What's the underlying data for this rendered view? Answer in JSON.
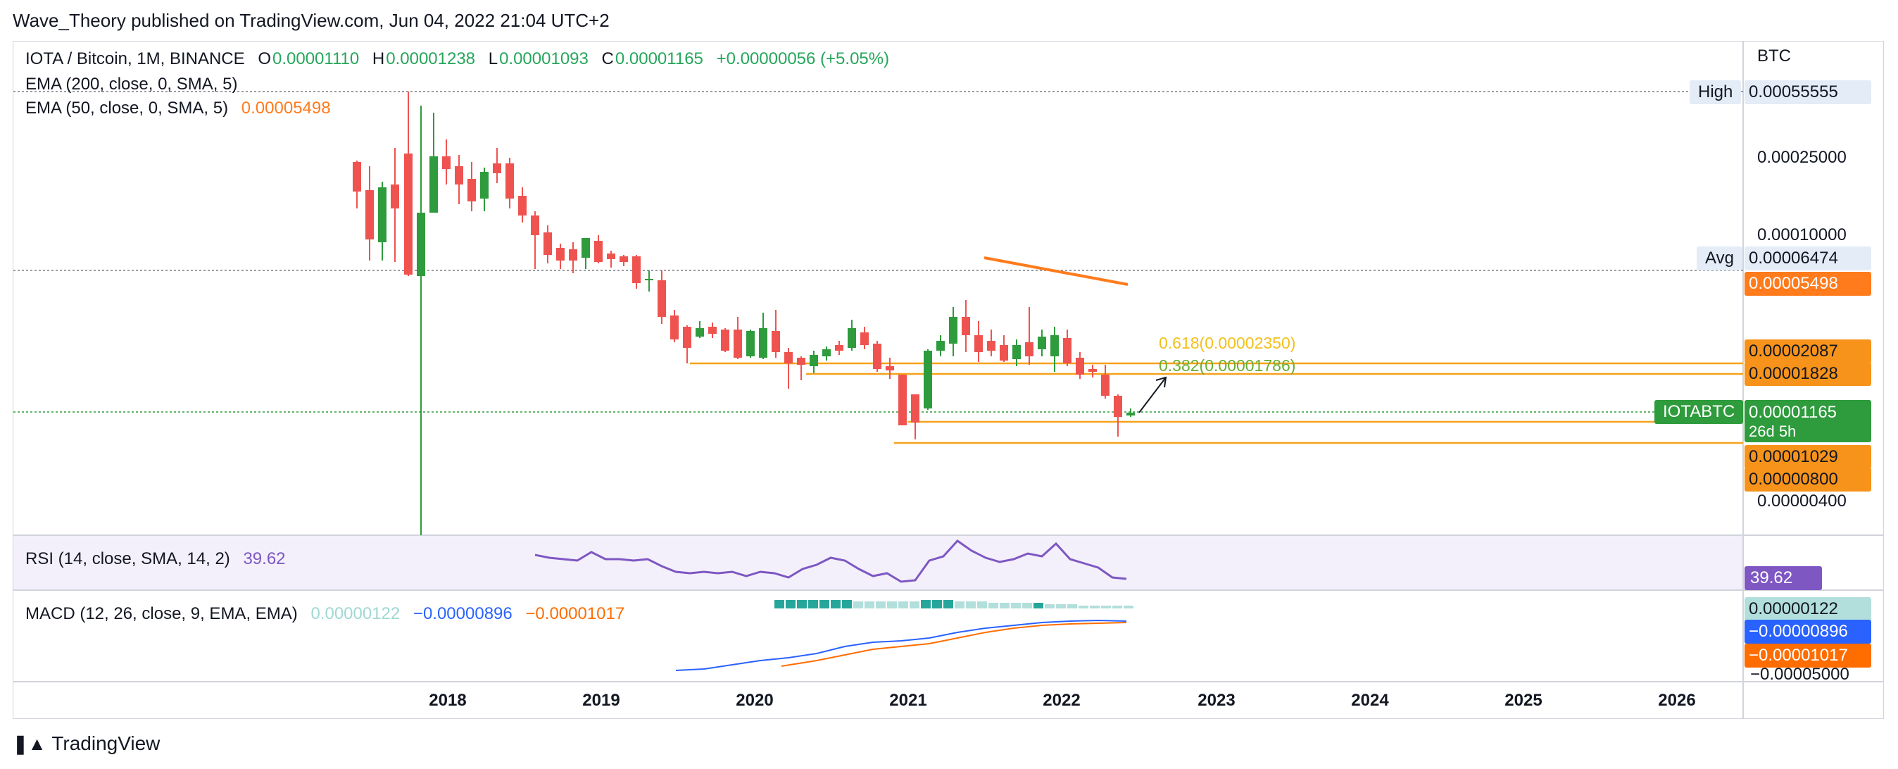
{
  "header": {
    "published_text": "Wave_Theory published on TradingView.com, Jun 04, 2022 21:04 UTC+2"
  },
  "legend": {
    "symbol": "IOTA / Bitcoin, 1M, BINANCE",
    "o_label": "O",
    "o_value": "0.00001110",
    "h_label": "H",
    "h_value": "0.00001238",
    "l_label": "L",
    "l_value": "0.00001093",
    "c_label": "C",
    "c_value": "0.00001165",
    "change": "+0.00000056 (+5.05%)",
    "ema200_label": "EMA (200, close, 0, SMA, 5)",
    "ema50_label": "EMA (50, close, 0, SMA, 5)",
    "ema50_value": "0.00005498"
  },
  "rsi": {
    "label": "RSI (14, close, SMA, 14, 2)",
    "value": "39.62"
  },
  "macd": {
    "label": "MACD (12, 26, close, 9, EMA, EMA)",
    "hist": "0.00000122",
    "macd": "−0.00000896",
    "signal": "−0.00001017"
  },
  "price_scale": {
    "currency": "BTC",
    "high_label": "High",
    "high_value": "0.00055555",
    "avg_label": "Avg",
    "avg_value": "0.00006474",
    "ticks": [
      "0.00025000",
      "0.00010000",
      "0.00000400"
    ],
    "ema50_tag": "0.00005498",
    "level_1": "0.00002087",
    "level_2": "0.00001828",
    "symbol_tag": "IOTABTC",
    "last_price": "0.00001165",
    "countdown": "26d 5h",
    "level_3": "0.00001029",
    "level_4": "0.00000800",
    "rsi_tag": "39.62",
    "macd_hist_tag": "0.00000122",
    "macd_tag": "−0.00000896",
    "signal_tag": "−0.00001017",
    "macd_tick": "−0.00005000"
  },
  "fib": {
    "f618": "0.618(0.00002350)",
    "f382": "0.382(0.00001786)"
  },
  "time_axis": [
    "2018",
    "2019",
    "2020",
    "2021",
    "2022",
    "2023",
    "2024",
    "2025",
    "2026"
  ],
  "footer": {
    "brand": "TradingView"
  },
  "colors": {
    "up": "#26a69a",
    "up_candle": "#2e9b3c",
    "down": "#ef5350",
    "ema50": "#ff7b1c",
    "rsi": "#7e57c2",
    "macd": "#2962ff",
    "signal": "#ff6d00",
    "level": "#f7a21b"
  }
}
